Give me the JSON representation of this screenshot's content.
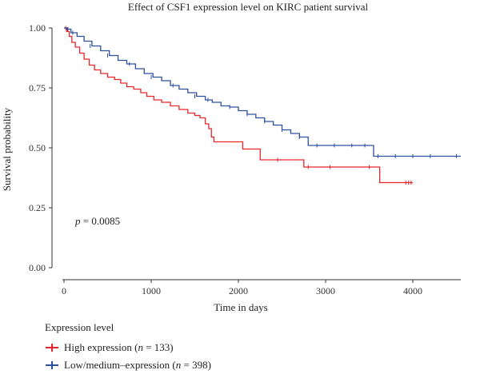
{
  "chart_data": {
    "type": "line",
    "title": "Effect of CSF1 expression level on KIRC patient survival",
    "xlabel": "Time in days",
    "ylabel": "Survival probability",
    "xlim": [
      0,
      4550
    ],
    "ylim": [
      0,
      1
    ],
    "x_ticks": [
      0,
      1000,
      2000,
      3000,
      4000
    ],
    "y_ticks": [
      "0.00",
      "0.25",
      "0.50",
      "0.75",
      "1.00"
    ],
    "annotation": {
      "prefix": "p",
      "text": " = 0.0085",
      "x": 300,
      "y": 0.295
    },
    "legend": {
      "title": "Expression level",
      "position": "bottom-left",
      "entries": [
        {
          "label": "High expression (",
          "n_label": "n",
          "n_value": " = 133)"
        },
        {
          "label": "Low/medium–expression (",
          "n_label": "n",
          "n_value": " = 398)"
        }
      ]
    },
    "series": [
      {
        "name": "High expression (n = 133)",
        "color": "#e8262a",
        "x": [
          0,
          30,
          60,
          90,
          130,
          180,
          230,
          290,
          350,
          420,
          500,
          580,
          650,
          720,
          800,
          880,
          950,
          1030,
          1120,
          1220,
          1320,
          1420,
          1500,
          1560,
          1620,
          1660,
          1690,
          1720,
          1800,
          1900,
          2050,
          2150,
          2250,
          2500,
          2750,
          3000,
          3200,
          3500,
          3600,
          3620,
          4000
        ],
        "y": [
          1.0,
          0.985,
          0.965,
          0.94,
          0.92,
          0.895,
          0.87,
          0.845,
          0.825,
          0.81,
          0.795,
          0.785,
          0.77,
          0.755,
          0.745,
          0.73,
          0.715,
          0.7,
          0.69,
          0.675,
          0.66,
          0.645,
          0.635,
          0.625,
          0.6,
          0.58,
          0.545,
          0.525,
          0.525,
          0.525,
          0.495,
          0.495,
          0.45,
          0.45,
          0.42,
          0.42,
          0.42,
          0.42,
          0.42,
          0.355,
          0.355
        ],
        "censor_x": [
          20,
          45,
          2450,
          2800,
          3050,
          3500,
          3920,
          3950,
          3980
        ],
        "censor_y": [
          1.0,
          0.995,
          0.45,
          0.42,
          0.42,
          0.42,
          0.355,
          0.355,
          0.355
        ]
      },
      {
        "name": "Low/medium–expression (n = 398)",
        "color": "#2d4fa0",
        "x": [
          0,
          30,
          80,
          150,
          230,
          320,
          420,
          520,
          620,
          720,
          820,
          920,
          1020,
          1120,
          1220,
          1320,
          1420,
          1520,
          1620,
          1700,
          1800,
          1900,
          2000,
          2100,
          2200,
          2300,
          2400,
          2500,
          2600,
          2700,
          2800,
          3000,
          3200,
          3500,
          3550,
          4550
        ],
        "y": [
          1.0,
          0.995,
          0.98,
          0.965,
          0.945,
          0.925,
          0.905,
          0.885,
          0.865,
          0.85,
          0.83,
          0.81,
          0.795,
          0.78,
          0.76,
          0.745,
          0.73,
          0.715,
          0.7,
          0.69,
          0.675,
          0.67,
          0.655,
          0.64,
          0.625,
          0.61,
          0.595,
          0.575,
          0.56,
          0.545,
          0.51,
          0.51,
          0.51,
          0.51,
          0.465,
          0.465
        ],
        "censor_x": [
          40,
          100,
          300,
          500,
          750,
          1000,
          1250,
          1500,
          1650,
          1900,
          2100,
          2300,
          2500,
          2700,
          2900,
          3100,
          3300,
          3450,
          3600,
          3800,
          4000,
          4200,
          4500
        ],
        "censor_y": [
          0.995,
          0.98,
          0.925,
          0.885,
          0.85,
          0.795,
          0.76,
          0.715,
          0.7,
          0.67,
          0.64,
          0.61,
          0.575,
          0.545,
          0.51,
          0.51,
          0.51,
          0.51,
          0.465,
          0.465,
          0.465,
          0.465,
          0.465
        ]
      }
    ]
  }
}
